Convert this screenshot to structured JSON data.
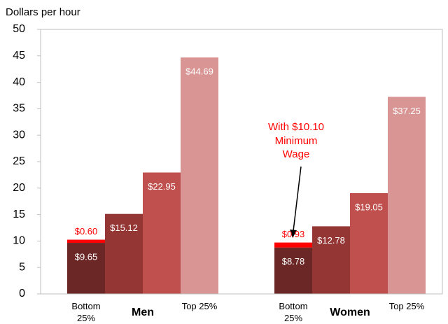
{
  "chart_data": {
    "type": "grouped-bar",
    "y_label": "Dollars per hour",
    "ylim": [
      0,
      50
    ],
    "yticks": [
      0,
      5,
      10,
      15,
      20,
      25,
      30,
      35,
      40,
      45,
      50
    ],
    "groups": [
      "Men",
      "Women"
    ],
    "series": [
      {
        "name": "Bottom 25%",
        "color": "#6b2626",
        "values": [
          9.65,
          8.78
        ],
        "value_labels": [
          "$9.65",
          "$8.78"
        ]
      },
      {
        "name": null,
        "color": "#943634",
        "values": [
          15.12,
          12.78
        ],
        "value_labels": [
          "$15.12",
          "$12.78"
        ]
      },
      {
        "name": null,
        "color": "#c0504d",
        "values": [
          22.95,
          19.05
        ],
        "value_labels": [
          "$22.95",
          "$19.05"
        ]
      },
      {
        "name": "Top 25%",
        "color": "#d99594",
        "values": [
          44.69,
          37.25
        ],
        "value_labels": [
          "$44.69",
          "$37.25"
        ]
      }
    ],
    "increase": {
      "color": "#ff0000",
      "stacked_on": 0,
      "values": [
        0.6,
        0.93
      ],
      "value_labels": [
        "$0.60",
        "$0.93"
      ]
    },
    "annotation": "With $10.10 Minimum Wage"
  }
}
